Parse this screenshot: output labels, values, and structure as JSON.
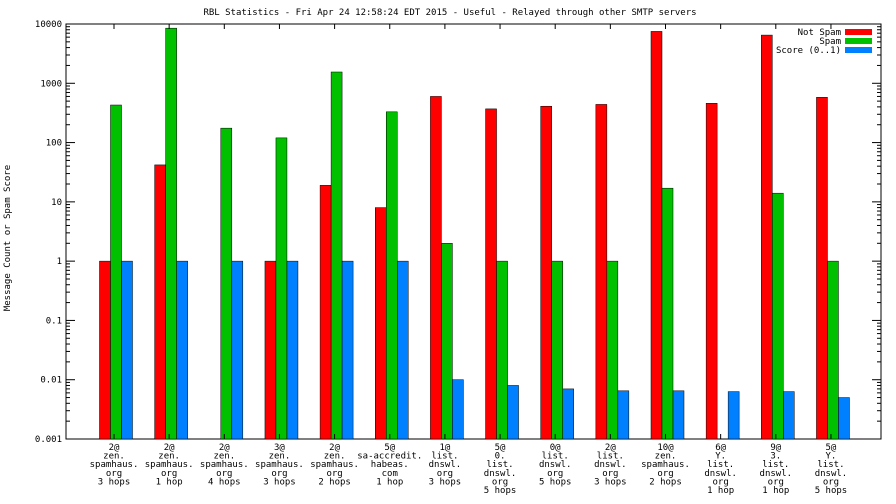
{
  "chart_data": {
    "type": "bar",
    "title": "RBL Statistics - Fri Apr 24 12:58:24 EDT 2015 - Useful - Relayed through other SMTP servers",
    "xlabel": "",
    "ylabel": "Message Count or Spam Score",
    "yscale": "log",
    "ylim": [
      0.001,
      10000
    ],
    "yticks": [
      {
        "value": 10000,
        "label": "10000"
      },
      {
        "value": 1000,
        "label": "1000"
      },
      {
        "value": 100,
        "label": "100"
      },
      {
        "value": 10,
        "label": "10"
      },
      {
        "value": 1,
        "label": "1"
      },
      {
        "value": 0.1,
        "label": "0.1"
      },
      {
        "value": 0.01,
        "label": "0.01"
      },
      {
        "value": 0.001,
        "label": "0.001"
      }
    ],
    "legend_position": "top-right",
    "categories": [
      [
        "2@",
        "zen.",
        "spamhaus.",
        "org",
        "3 hops"
      ],
      [
        "2@",
        "zen.",
        "spamhaus.",
        "org",
        "1 hop"
      ],
      [
        "2@",
        "zen.",
        "spamhaus.",
        "org",
        "4 hops"
      ],
      [
        "3@",
        "zen.",
        "spamhaus.",
        "org",
        "3 hops"
      ],
      [
        "2@",
        "zen.",
        "spamhaus.",
        "org",
        "2 hops"
      ],
      [
        "5@",
        "sa-accredit.",
        "habeas.",
        "com",
        "1 hop"
      ],
      [
        "1@",
        "list.",
        "dnswl.",
        "org",
        "3 hops"
      ],
      [
        "5@",
        "0.",
        "list.",
        "dnswl.",
        "org",
        "5 hops"
      ],
      [
        "0@",
        "list.",
        "dnswl.",
        "org",
        "5 hops"
      ],
      [
        "2@",
        "list.",
        "dnswl.",
        "org",
        "3 hops"
      ],
      [
        "10@",
        "zen.",
        "spamhaus.",
        "org",
        "2 hops"
      ],
      [
        "6@",
        "Y.",
        "list.",
        "dnswl.",
        "org",
        "1 hop"
      ],
      [
        "9@",
        "3.",
        "list.",
        "dnswl.",
        "org",
        "1 hop"
      ],
      [
        "5@",
        "Y.",
        "list.",
        "dnswl.",
        "org",
        "5 hops"
      ]
    ],
    "series": [
      {
        "name": "Not Spam",
        "color": "#ff0000",
        "values": [
          1,
          42,
          null,
          1,
          19,
          8,
          600,
          370,
          410,
          440,
          7500,
          460,
          6500,
          580
        ]
      },
      {
        "name": "Spam",
        "color": "#00c000",
        "values": [
          430,
          8500,
          175,
          120,
          1550,
          330,
          2,
          1,
          1,
          1,
          17,
          null,
          14,
          1
        ]
      },
      {
        "name": "Score (0..1)",
        "color": "#0080ff",
        "values": [
          1,
          1,
          1,
          1,
          1,
          1,
          0.01,
          0.008,
          0.007,
          0.0065,
          0.0065,
          0.0063,
          0.0063,
          0.005
        ]
      }
    ]
  }
}
